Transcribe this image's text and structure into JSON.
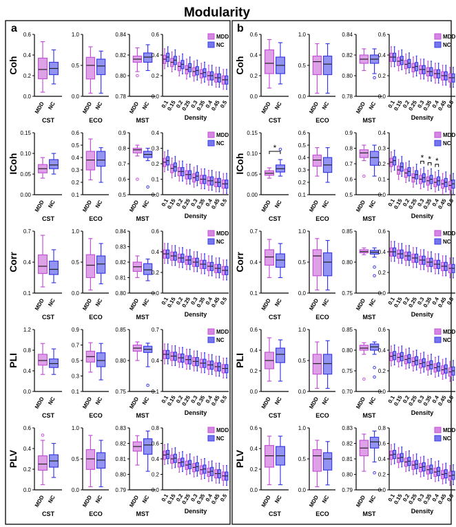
{
  "figure": {
    "title": "Modularity",
    "panel_labels": [
      "a",
      "b"
    ],
    "legend": [
      {
        "name": "MDD",
        "color": "#c353d6"
      },
      {
        "name": "NC",
        "color": "#3b3be6"
      }
    ],
    "metrics": [
      "Coh",
      "ICoh",
      "Corr",
      "PLI",
      "PLV"
    ],
    "small_groups": [
      "MDD",
      "NC"
    ],
    "small_titles": [
      "CST",
      "ECO",
      "MST"
    ],
    "density_ticks": [
      "0.1",
      "0.15",
      "0.2",
      "0.25",
      "0.3",
      "0.35",
      "0.4",
      "0.45",
      "0.5"
    ],
    "density_title": "Density"
  },
  "chart_data": [
    {
      "panel": "a",
      "metric": "Coh",
      "type": "box",
      "CST": {
        "ylim": [
          0,
          0.6
        ],
        "yticks": [
          "0.0",
          "0.2",
          "0.4",
          "0.6"
        ],
        "MDD": [
          0.04,
          0.17,
          0.26,
          0.37,
          0.53
        ],
        "NC": [
          0.12,
          0.21,
          0.27,
          0.33,
          0.45
        ]
      },
      "ECO": {
        "ylim": [
          0,
          1.0
        ],
        "yticks": [
          "0.0",
          "0.5",
          "1.0"
        ],
        "MDD": [
          0.05,
          0.28,
          0.5,
          0.63,
          0.8
        ],
        "NC": [
          0.05,
          0.35,
          0.49,
          0.6,
          0.73
        ]
      },
      "MST": {
        "ylim": [
          0.78,
          0.84
        ],
        "yticks": [
          "0.78",
          "0.80",
          "0.82",
          "0.84"
        ],
        "MDD": [
          0.804,
          0.813,
          0.816,
          0.819,
          0.827
        ],
        "NC": [
          0.805,
          0.813,
          0.818,
          0.822,
          0.83
        ],
        "outliers_MDD": [
          0.8
        ]
      },
      "Density": {
        "ylim": [
          0,
          0.6
        ],
        "yticks": [
          "0.0",
          "0.2",
          "0.4",
          "0.6"
        ],
        "medians_MDD": [
          0.36,
          0.33,
          0.29,
          0.26,
          0.24,
          0.22,
          0.2,
          0.18,
          0.16
        ],
        "medians_NC": [
          0.38,
          0.35,
          0.31,
          0.28,
          0.25,
          0.23,
          0.2,
          0.18,
          0.16
        ]
      }
    },
    {
      "panel": "a",
      "metric": "ICoh",
      "type": "box",
      "CST": {
        "ylim": [
          0,
          0.15
        ],
        "yticks": [
          "0.00",
          "0.05",
          "0.10",
          "0.15"
        ],
        "MDD": [
          0.04,
          0.053,
          0.063,
          0.073,
          0.09
        ],
        "NC": [
          0.05,
          0.063,
          0.072,
          0.085,
          0.1
        ]
      },
      "ECO": {
        "ylim": [
          0.1,
          0.6
        ],
        "yticks": [
          "0.1",
          "0.2",
          "0.3",
          "0.4",
          "0.5",
          "0.6"
        ],
        "MDD": [
          0.22,
          0.3,
          0.38,
          0.45,
          0.55
        ],
        "NC": [
          0.2,
          0.33,
          0.38,
          0.45,
          0.48
        ]
      },
      "MST": {
        "ylim": [
          0.5,
          0.9
        ],
        "yticks": [
          "0.5",
          "0.6",
          "0.7",
          "0.8",
          "0.9"
        ],
        "MDD": [
          0.75,
          0.77,
          0.79,
          0.8,
          0.82
        ],
        "NC": [
          0.72,
          0.74,
          0.76,
          0.78,
          0.8
        ],
        "outliers_MDD": [
          0.6
        ],
        "outliers_NC": [
          0.55
        ]
      },
      "Density": {
        "ylim": [
          0,
          0.4
        ],
        "yticks": [
          "0.0",
          "0.1",
          "0.2",
          "0.3",
          "0.4"
        ],
        "medians_MDD": [
          0.21,
          0.17,
          0.15,
          0.13,
          0.11,
          0.1,
          0.09,
          0.08,
          0.07
        ],
        "medians_NC": [
          0.22,
          0.18,
          0.15,
          0.13,
          0.12,
          0.1,
          0.09,
          0.08,
          0.07
        ]
      }
    },
    {
      "panel": "a",
      "metric": "Corr",
      "type": "box",
      "CST": {
        "ylim": [
          0.1,
          0.7
        ],
        "yticks": [
          "0.1",
          "0.4",
          "0.7"
        ],
        "MDD": [
          0.16,
          0.29,
          0.36,
          0.47,
          0.66
        ],
        "NC": [
          0.2,
          0.28,
          0.33,
          0.41,
          0.52
        ]
      },
      "ECO": {
        "ylim": [
          0,
          1.0
        ],
        "yticks": [
          "0.0",
          "0.5",
          "1.0"
        ],
        "MDD": [
          0.05,
          0.25,
          0.45,
          0.62,
          0.88
        ],
        "NC": [
          0.15,
          0.32,
          0.47,
          0.6,
          0.8
        ]
      },
      "MST": {
        "ylim": [
          0.8,
          0.84
        ],
        "yticks": [
          "0.80",
          "0.81",
          "0.82",
          "0.83",
          "0.84"
        ],
        "MDD": [
          0.81,
          0.814,
          0.817,
          0.82,
          0.824
        ],
        "NC": [
          0.808,
          0.812,
          0.815,
          0.819,
          0.822
        ]
      },
      "Density": {
        "ylim": [
          0,
          0.6
        ],
        "yticks": [
          "0.0",
          "0.2",
          "0.4",
          "0.6"
        ],
        "medians_MDD": [
          0.38,
          0.36,
          0.34,
          0.32,
          0.3,
          0.28,
          0.26,
          0.24,
          0.22
        ],
        "medians_NC": [
          0.38,
          0.36,
          0.34,
          0.32,
          0.3,
          0.28,
          0.26,
          0.24,
          0.22
        ]
      }
    },
    {
      "panel": "a",
      "metric": "PLI",
      "type": "box",
      "CST": {
        "ylim": [
          0,
          0.8
        ],
        "yticks": [
          "0.0",
          "0.4",
          "0.8",
          "1.2"
        ],
        "MDD": [
          0.22,
          0.34,
          0.4,
          0.48,
          0.62
        ],
        "NC": [
          0.22,
          0.31,
          0.36,
          0.42,
          0.55
        ]
      },
      "ECO": {
        "ylim": [
          0.1,
          0.9
        ],
        "yticks": [
          "0.1",
          "0.3",
          "0.5",
          "0.7",
          "0.9"
        ],
        "MDD": [
          0.35,
          0.48,
          0.55,
          0.62,
          0.73
        ],
        "NC": [
          0.25,
          0.42,
          0.5,
          0.6,
          0.72
        ]
      },
      "MST": {
        "ylim": [
          0.75,
          0.85
        ],
        "yticks": [
          "0.75",
          "0.80",
          "0.85"
        ],
        "MDD": [
          0.8,
          0.815,
          0.82,
          0.825,
          0.83
        ],
        "NC": [
          0.79,
          0.813,
          0.818,
          0.823,
          0.828
        ],
        "outliers_NC": [
          0.76
        ]
      },
      "Density": {
        "ylim": [
          0,
          0.7
        ],
        "yticks": [
          "0.1",
          "0.4",
          "0.7"
        ],
        "medians_MDD": [
          0.42,
          0.4,
          0.38,
          0.36,
          0.34,
          0.32,
          0.3,
          0.28,
          0.26
        ],
        "medians_NC": [
          0.42,
          0.4,
          0.38,
          0.36,
          0.34,
          0.32,
          0.3,
          0.28,
          0.26
        ]
      }
    },
    {
      "panel": "a",
      "metric": "PLV",
      "type": "box",
      "CST": {
        "ylim": [
          0,
          0.6
        ],
        "yticks": [
          "0.0",
          "0.2",
          "0.4",
          "0.6"
        ],
        "MDD": [
          0.05,
          0.19,
          0.25,
          0.33,
          0.48
        ],
        "NC": [
          0.12,
          0.22,
          0.28,
          0.34,
          0.45
        ],
        "outliers_MDD": [
          0.53
        ]
      },
      "ECO": {
        "ylim": [
          0,
          1.0
        ],
        "yticks": [
          "0.0",
          "0.5",
          "1.0"
        ],
        "MDD": [
          0.05,
          0.33,
          0.5,
          0.65,
          0.88
        ],
        "NC": [
          0.05,
          0.35,
          0.48,
          0.6,
          0.8
        ]
      },
      "MST": {
        "ylim": [
          0.79,
          0.83
        ],
        "yticks": [
          "0.79",
          "0.80",
          "0.81",
          "0.82",
          "0.83"
        ],
        "MDD": [
          0.806,
          0.815,
          0.818,
          0.821,
          0.825
        ],
        "NC": [
          0.802,
          0.813,
          0.819,
          0.823,
          0.828
        ]
      },
      "Density": {
        "ylim": [
          0,
          0.8
        ],
        "yticks": [
          "0.0",
          "0.2",
          "0.4",
          "0.6",
          "0.8"
        ],
        "medians_MDD": [
          0.45,
          0.4,
          0.35,
          0.32,
          0.29,
          0.26,
          0.23,
          0.21,
          0.18
        ],
        "medians_NC": [
          0.46,
          0.41,
          0.36,
          0.33,
          0.3,
          0.27,
          0.24,
          0.21,
          0.18
        ]
      }
    },
    {
      "panel": "b",
      "metric": "Coh",
      "type": "box",
      "CST": {
        "ylim": [
          0,
          0.6
        ],
        "yticks": [
          "0.0",
          "0.2",
          "0.4",
          "0.6"
        ],
        "MDD": [
          0.08,
          0.22,
          0.32,
          0.45,
          0.55
        ],
        "NC": [
          0.12,
          0.22,
          0.3,
          0.38,
          0.52
        ]
      },
      "ECO": {
        "ylim": [
          0,
          1.0
        ],
        "yticks": [
          "0.0",
          "0.5",
          "1.0"
        ],
        "MDD": [
          0.05,
          0.35,
          0.56,
          0.65,
          0.85
        ],
        "NC": [
          0.05,
          0.35,
          0.52,
          0.65,
          0.85
        ]
      },
      "MST": {
        "ylim": [
          0.78,
          0.84
        ],
        "yticks": [
          "0.78",
          "0.80",
          "0.82",
          "0.84"
        ],
        "MDD": [
          0.805,
          0.812,
          0.816,
          0.82,
          0.826
        ],
        "NC": [
          0.802,
          0.812,
          0.816,
          0.82,
          0.826
        ],
        "outliers_NC": [
          0.798
        ]
      },
      "Density": {
        "ylim": [
          0,
          0.6
        ],
        "yticks": [
          "0.0",
          "0.2",
          "0.4",
          "0.6"
        ],
        "medians_MDD": [
          0.38,
          0.34,
          0.31,
          0.28,
          0.26,
          0.24,
          0.22,
          0.2,
          0.18
        ],
        "medians_NC": [
          0.38,
          0.35,
          0.32,
          0.29,
          0.26,
          0.24,
          0.22,
          0.2,
          0.18
        ]
      }
    },
    {
      "panel": "b",
      "metric": "ICoh",
      "type": "box",
      "CST": {
        "ylim": [
          0,
          0.15
        ],
        "yticks": [
          "0.00",
          "0.05",
          "0.10",
          "0.15"
        ],
        "MDD": [
          0.04,
          0.047,
          0.052,
          0.058,
          0.065
        ],
        "NC": [
          0.045,
          0.055,
          0.063,
          0.072,
          0.085
        ],
        "outliers_NC": [
          0.11
        ]
      },
      "ECO": {
        "ylim": [
          0.1,
          0.6
        ],
        "yticks": [
          "0.1",
          "0.2",
          "0.3",
          "0.4",
          "0.5",
          "0.6"
        ],
        "MDD": [
          0.25,
          0.33,
          0.38,
          0.42,
          0.48
        ],
        "NC": [
          0.2,
          0.28,
          0.34,
          0.4,
          0.48
        ]
      },
      "MST": {
        "ylim": [
          0.5,
          0.9
        ],
        "yticks": [
          "0.5",
          "0.6",
          "0.7",
          "0.8",
          "0.9"
        ],
        "MDD": [
          0.72,
          0.74,
          0.77,
          0.79,
          0.82
        ],
        "NC": [
          0.62,
          0.69,
          0.74,
          0.78,
          0.82
        ],
        "outliers_MDD": [
          0.62
        ]
      },
      "Density": {
        "ylim": [
          0,
          0.4
        ],
        "yticks": [
          "0.0",
          "0.1",
          "0.2",
          "0.3",
          "0.4"
        ],
        "medians_MDD": [
          0.21,
          0.16,
          0.14,
          0.11,
          0.1,
          0.09,
          0.08,
          0.07,
          0.06
        ],
        "medians_NC": [
          0.22,
          0.18,
          0.15,
          0.13,
          0.11,
          0.1,
          0.09,
          0.08,
          0.07
        ]
      },
      "significance": [
        "CST",
        "0.3",
        "0.35",
        "0.4"
      ]
    },
    {
      "panel": "b",
      "metric": "Corr",
      "type": "box",
      "CST": {
        "ylim": [
          0.1,
          0.7
        ],
        "yticks": [
          "0.1",
          "0.4",
          "0.7"
        ],
        "MDD": [
          0.25,
          0.37,
          0.45,
          0.52,
          0.62
        ],
        "NC": [
          0.25,
          0.35,
          0.42,
          0.48,
          0.58
        ]
      },
      "ECO": {
        "ylim": [
          0,
          1.0
        ],
        "yticks": [
          "0.0",
          "0.5",
          "1.0"
        ],
        "MDD": [
          0.05,
          0.28,
          0.6,
          0.7,
          0.88
        ],
        "NC": [
          0.05,
          0.28,
          0.5,
          0.65,
          0.85
        ]
      },
      "MST": {
        "ylim": [
          0.75,
          0.85
        ],
        "yticks": [
          "0.75",
          "0.80",
          "0.85"
        ],
        "MDD": [
          0.812,
          0.815,
          0.817,
          0.82,
          0.823
        ],
        "NC": [
          0.808,
          0.813,
          0.816,
          0.819,
          0.823
        ],
        "outliers_NC": [
          0.778,
          0.792
        ]
      },
      "Density": {
        "ylim": [
          0,
          0.6
        ],
        "yticks": [
          "0.0",
          "0.2",
          "0.4",
          "0.6"
        ],
        "medians_MDD": [
          0.4,
          0.38,
          0.36,
          0.34,
          0.32,
          0.3,
          0.28,
          0.26,
          0.24
        ],
        "medians_NC": [
          0.4,
          0.38,
          0.36,
          0.34,
          0.32,
          0.3,
          0.28,
          0.26,
          0.24
        ]
      }
    },
    {
      "panel": "b",
      "metric": "PLI",
      "type": "box",
      "CST": {
        "ylim": [
          0,
          0.6
        ],
        "yticks": [
          "0.0",
          "0.2",
          "0.4",
          "0.6"
        ],
        "MDD": [
          0.1,
          0.22,
          0.3,
          0.38,
          0.52
        ],
        "NC": [
          0.1,
          0.28,
          0.36,
          0.42,
          0.5
        ]
      },
      "ECO": {
        "ylim": [
          0,
          1.0
        ],
        "yticks": [
          "0.0",
          "0.5",
          "1.0"
        ],
        "MDD": [
          0.05,
          0.28,
          0.45,
          0.6,
          0.8
        ],
        "NC": [
          0.05,
          0.28,
          0.45,
          0.6,
          0.82
        ]
      },
      "MST": {
        "ylim": [
          0.7,
          0.85
        ],
        "yticks": [
          "0.70",
          "0.75",
          "0.80",
          "0.85"
        ],
        "MDD": [
          0.79,
          0.8,
          0.805,
          0.812,
          0.818
        ],
        "NC": [
          0.79,
          0.8,
          0.808,
          0.815,
          0.82
        ],
        "outliers_MDD": [
          0.73
        ],
        "outliers_NC": [
          0.735,
          0.758
        ]
      },
      "Density": {
        "ylim": [
          0,
          0.6
        ],
        "yticks": [
          "0.0",
          "0.2",
          "0.4",
          "0.6"
        ],
        "medians_MDD": [
          0.34,
          0.33,
          0.31,
          0.29,
          0.27,
          0.25,
          0.23,
          0.21,
          0.19
        ],
        "medians_NC": [
          0.35,
          0.34,
          0.32,
          0.3,
          0.28,
          0.26,
          0.24,
          0.22,
          0.2
        ]
      }
    },
    {
      "panel": "b",
      "metric": "PLV",
      "type": "box",
      "CST": {
        "ylim": [
          0,
          0.6
        ],
        "yticks": [
          "0.0",
          "0.2",
          "0.4",
          "0.6"
        ],
        "MDD": [
          0.05,
          0.22,
          0.33,
          0.43,
          0.52
        ],
        "NC": [
          0.05,
          0.24,
          0.33,
          0.42,
          0.52
        ]
      },
      "ECO": {
        "ylim": [
          0,
          1.0
        ],
        "yticks": [
          "0.0",
          "0.5",
          "1.0"
        ],
        "MDD": [
          0.05,
          0.3,
          0.55,
          0.65,
          0.8
        ],
        "NC": [
          0.08,
          0.32,
          0.5,
          0.6,
          0.78
        ]
      },
      "MST": {
        "ylim": [
          0.79,
          0.83
        ],
        "yticks": [
          "0.79",
          "0.80",
          "0.81",
          "0.82",
          "0.83"
        ],
        "MDD": [
          0.802,
          0.812,
          0.817,
          0.822,
          0.826
        ],
        "NC": [
          0.808,
          0.817,
          0.821,
          0.824,
          0.828
        ],
        "outliers_NC": [
          0.801
        ]
      },
      "Density": {
        "ylim": [
          0,
          0.8
        ],
        "yticks": [
          "0.0",
          "0.2",
          "0.4",
          "0.6",
          "0.8"
        ],
        "medians_MDD": [
          0.45,
          0.41,
          0.36,
          0.32,
          0.29,
          0.26,
          0.23,
          0.2,
          0.18
        ],
        "medians_NC": [
          0.46,
          0.42,
          0.37,
          0.33,
          0.3,
          0.27,
          0.24,
          0.21,
          0.19
        ]
      }
    }
  ]
}
